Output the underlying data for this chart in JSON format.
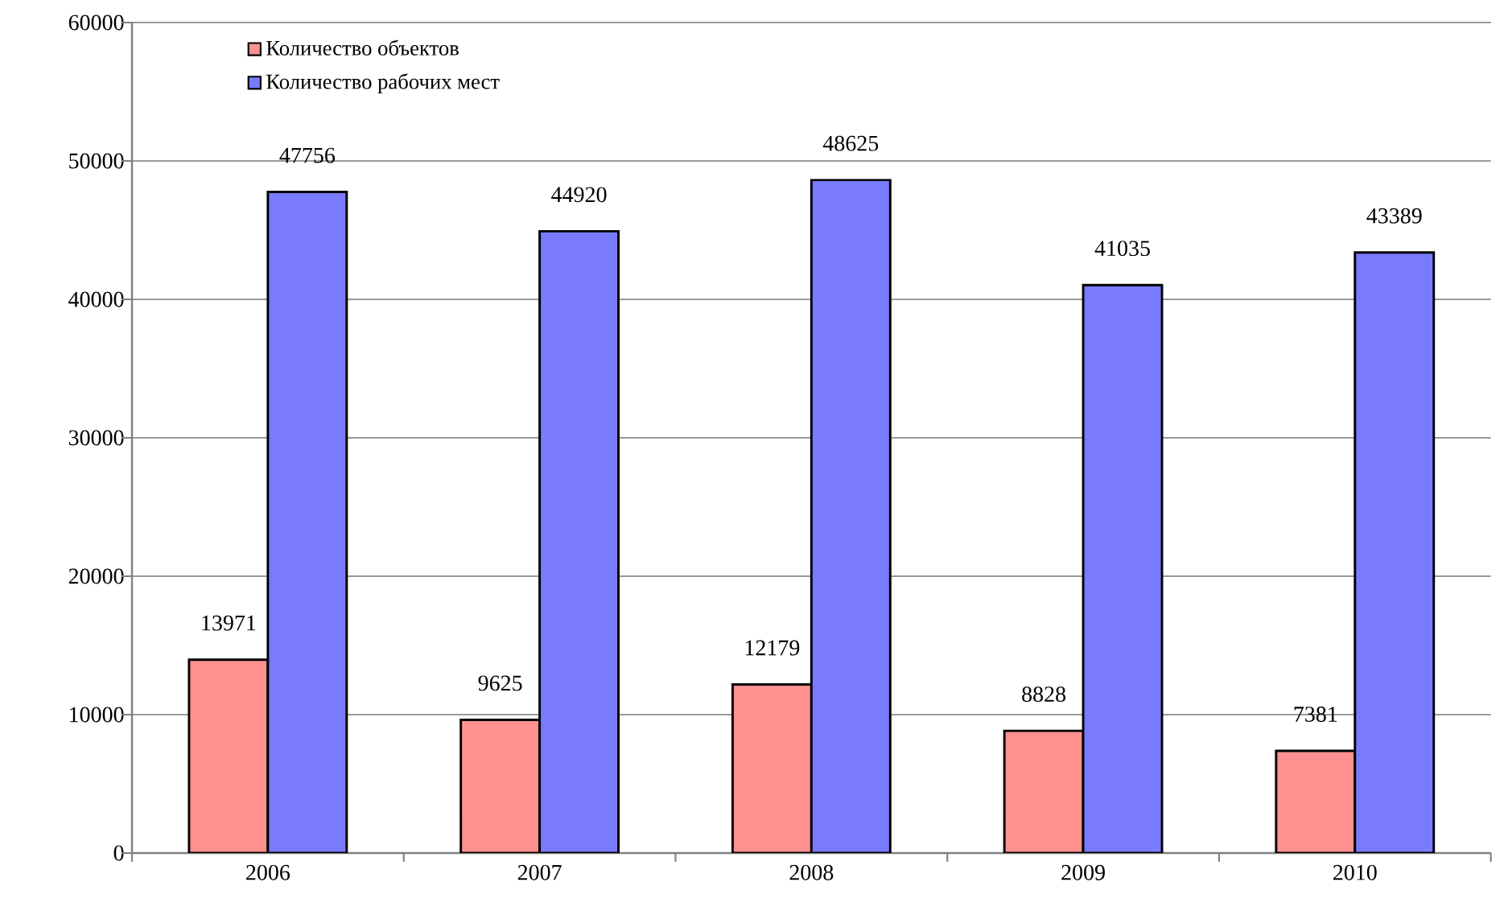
{
  "chart_data": {
    "type": "bar",
    "categories": [
      "2006",
      "2007",
      "2008",
      "2009",
      "2010"
    ],
    "series": [
      {
        "name": "Количество объектов",
        "color": "#ff9090",
        "values": [
          13971,
          9625,
          12179,
          8828,
          7381
        ]
      },
      {
        "name": "Количество рабочих мест",
        "color": "#7a7aff",
        "values": [
          47756,
          44920,
          48625,
          41035,
          43389
        ]
      }
    ],
    "ylim": [
      0,
      60000
    ],
    "yticks": [
      0,
      10000,
      20000,
      30000,
      40000,
      50000,
      60000
    ],
    "grid": "y",
    "legend": "top left",
    "data_labels": true
  }
}
